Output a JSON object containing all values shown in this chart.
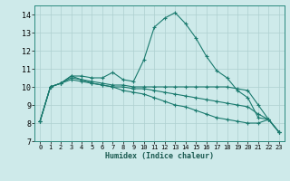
{
  "xlabel": "Humidex (Indice chaleur)",
  "ylabel": "",
  "xlim": [
    -0.5,
    23.5
  ],
  "ylim": [
    7,
    14.5
  ],
  "yticks": [
    7,
    8,
    9,
    10,
    11,
    12,
    13,
    14
  ],
  "xticks": [
    0,
    1,
    2,
    3,
    4,
    5,
    6,
    7,
    8,
    9,
    10,
    11,
    12,
    13,
    14,
    15,
    16,
    17,
    18,
    19,
    20,
    21,
    22,
    23
  ],
  "bg_color": "#ceeaea",
  "grid_color": "#aed0d0",
  "line_color": "#1a7a6e",
  "curves": [
    [
      8.1,
      10.0,
      10.2,
      10.6,
      10.6,
      10.5,
      10.5,
      10.8,
      10.4,
      10.3,
      11.5,
      13.3,
      13.8,
      14.1,
      13.5,
      12.7,
      11.7,
      10.9,
      10.5,
      9.8,
      9.4,
      8.3,
      8.2,
      7.5
    ],
    [
      8.1,
      10.0,
      10.2,
      10.6,
      10.4,
      10.3,
      10.2,
      10.1,
      10.1,
      10.0,
      10.0,
      10.0,
      10.0,
      10.0,
      10.0,
      10.0,
      10.0,
      10.0,
      10.0,
      9.9,
      9.8,
      9.0,
      8.2,
      7.5
    ],
    [
      8.1,
      10.0,
      10.2,
      10.5,
      10.4,
      10.2,
      10.1,
      10.0,
      10.0,
      9.9,
      9.9,
      9.8,
      9.7,
      9.6,
      9.5,
      9.4,
      9.3,
      9.2,
      9.1,
      9.0,
      8.9,
      8.5,
      8.2,
      7.5
    ],
    [
      8.1,
      10.0,
      10.2,
      10.4,
      10.3,
      10.2,
      10.1,
      10.0,
      9.8,
      9.7,
      9.6,
      9.4,
      9.2,
      9.0,
      8.9,
      8.7,
      8.5,
      8.3,
      8.2,
      8.1,
      8.0,
      8.0,
      8.2,
      7.5
    ]
  ]
}
